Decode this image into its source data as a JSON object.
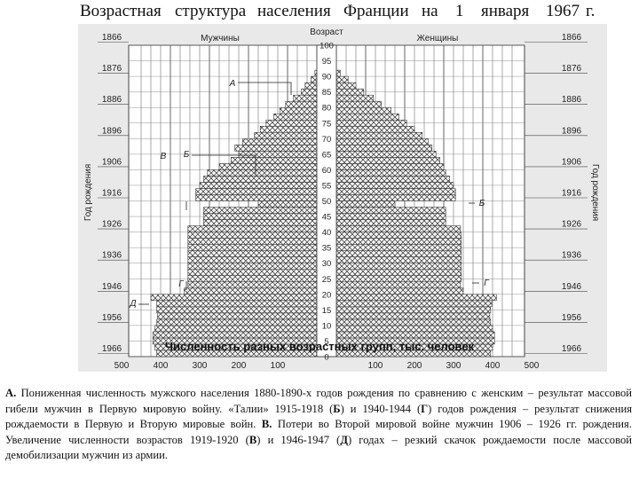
{
  "title": {
    "words": [
      "Возрастная",
      "структура",
      "населения",
      "Франции",
      "на",
      "1",
      "января",
      "1967",
      "г."
    ]
  },
  "chart_data": {
    "type": "bar",
    "subtype": "population-pyramid",
    "left_label": "Мужчины",
    "right_label": "Женщины",
    "center_label": "Возраст",
    "left_axis_label": "Год рождения",
    "right_axis_label": "Год рождения",
    "x_caption": "Численность разных возрастных групп, тыс. человек",
    "x_ticks_male": [
      "500",
      "400",
      "300",
      "200",
      "100"
    ],
    "x_ticks_female": [
      "100",
      "200",
      "300",
      "400",
      "500"
    ],
    "xlim": [
      0,
      500
    ],
    "age_ticks": [
      "100",
      "95",
      "90",
      "85",
      "80",
      "75",
      "70",
      "65",
      "60",
      "55",
      "50",
      "45",
      "40",
      "35",
      "30",
      "25",
      "20",
      "15",
      "10",
      "5",
      "0"
    ],
    "birth_year_ticks": [
      "1866",
      "1876",
      "1886",
      "1896",
      "1906",
      "1916",
      "1926",
      "1936",
      "1946",
      "1956",
      "1966"
    ],
    "annotations": [
      "А",
      "Б",
      "В",
      "Г",
      "Д",
      "Б",
      "Г"
    ],
    "ages": [
      0,
      2,
      4,
      6,
      8,
      10,
      12,
      14,
      16,
      18,
      20,
      22,
      24,
      26,
      28,
      30,
      32,
      34,
      36,
      38,
      40,
      42,
      44,
      46,
      48,
      50,
      52,
      54,
      56,
      58,
      60,
      62,
      64,
      66,
      68,
      70,
      72,
      74,
      76,
      78,
      80,
      82,
      84,
      86,
      88,
      90
    ],
    "male": [
      410,
      415,
      420,
      420,
      415,
      410,
      408,
      410,
      410,
      425,
      340,
      330,
      330,
      330,
      330,
      330,
      330,
      330,
      330,
      330,
      330,
      290,
      290,
      290,
      150,
      310,
      310,
      300,
      290,
      280,
      250,
      220,
      200,
      210,
      190,
      160,
      145,
      130,
      110,
      95,
      80,
      60,
      40,
      30,
      15,
      5
    ],
    "female": [
      395,
      400,
      405,
      405,
      400,
      395,
      393,
      395,
      398,
      410,
      325,
      318,
      320,
      320,
      320,
      320,
      320,
      320,
      320,
      320,
      318,
      280,
      280,
      280,
      150,
      305,
      305,
      300,
      290,
      280,
      275,
      265,
      255,
      245,
      235,
      220,
      200,
      180,
      160,
      140,
      115,
      95,
      70,
      50,
      30,
      10
    ]
  },
  "notes": {
    "a_label": "А.",
    "a_text": " Пониженная численность  мужского населения 1880-1890-х годов рождения по сравнению с женским – результат  массовой гибели  мужчин в Первую мировую войну.  «Талии» 1915-1918  (",
    "b_letter": "Б",
    "t1": ") и 1940-1944  (",
    "g_letter": "Г",
    "t2": ") годов рождения  – результат снижения рождаемости в Первую и Вторую мировые   войн.  ",
    "v_label": "В.",
    "t3": " Потери   во Второй мировой войне  мужчин 1906 – 1926 гг. рождения.  Увеличение численности возрастов 1919-1920  (",
    "v_letter": "В",
    "t4": ")  и 1946-1947  (",
    "d_letter": "Д",
    "t5": ")  годах  – резкий  скачок рождаемости после массовой демобилизации мужчин из армии."
  }
}
